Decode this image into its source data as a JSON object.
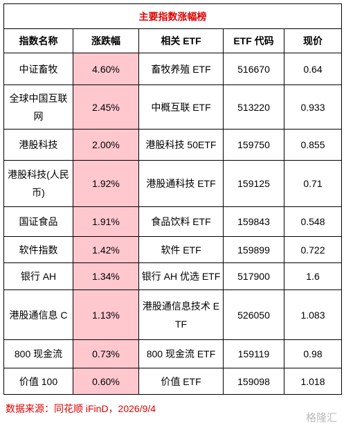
{
  "table": {
    "title": "主要指数涨幅榜",
    "header": [
      "指数名称",
      "涨跌幅",
      "相关 ETF",
      "ETF 代码",
      "现价"
    ],
    "rows": [
      [
        "中证畜牧",
        "4.60%",
        "畜牧养殖 ETF",
        "516670",
        "0.64"
      ],
      [
        "全球中国互联网",
        "2.45%",
        "中概互联 ETF",
        "513220",
        "0.933"
      ],
      [
        "港股科技",
        "2.00%",
        "港股科技 50ETF",
        "159750",
        "0.855"
      ],
      [
        "港股科技(人民币)",
        "1.92%",
        "港股通科技 ETF",
        "159125",
        "0.71"
      ],
      [
        "国证食品",
        "1.91%",
        "食品饮料 ETF",
        "159843",
        "0.548"
      ],
      [
        "软件指数",
        "1.42%",
        "软件 ETF",
        "159899",
        "0.722"
      ],
      [
        "银行 AH",
        "1.34%",
        "银行 AH 优选 ETF",
        "517900",
        "1.6"
      ],
      [
        "港股通信息 C",
        "1.13%",
        "港股通信息技术 ETF",
        "526050",
        "1.083"
      ],
      [
        "800 现金流",
        "0.73%",
        "800 现金流 ETF",
        "159119",
        "0.98"
      ],
      [
        "价值 100",
        "0.60%",
        "价值 ETF",
        "159098",
        "1.018"
      ]
    ]
  },
  "footer": {
    "source": "数据来源：同花顺 iFinD，2026/9/4",
    "watermark": "格隆汇"
  }
}
